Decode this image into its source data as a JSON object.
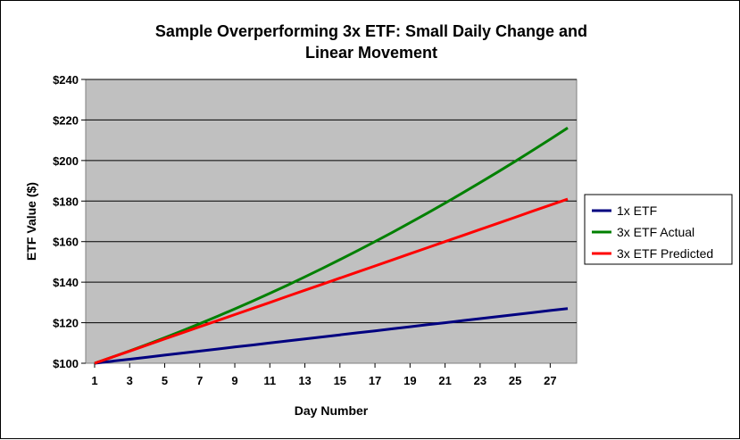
{
  "chart_data": {
    "type": "line",
    "title": "Sample Overperforming 3x ETF: Small Daily Change and Linear Movement",
    "xlabel": "Day Number",
    "ylabel": "ETF Value ($)",
    "xlim": [
      1,
      28
    ],
    "ylim": [
      100,
      240
    ],
    "x_ticks": [
      "1",
      "3",
      "5",
      "7",
      "9",
      "11",
      "13",
      "15",
      "17",
      "19",
      "21",
      "23",
      "25",
      "27"
    ],
    "y_ticks": [
      "$100",
      "$120",
      "$140",
      "$160",
      "$180",
      "$200",
      "$220",
      "$240"
    ],
    "grid": true,
    "plot_background": "#C0C0C0",
    "legend_position": "right",
    "x": [
      1,
      2,
      3,
      4,
      5,
      6,
      7,
      8,
      9,
      10,
      11,
      12,
      13,
      14,
      15,
      16,
      17,
      18,
      19,
      20,
      21,
      22,
      23,
      24,
      25,
      26,
      27,
      28
    ],
    "series": [
      {
        "name": "1x ETF",
        "color": "#000080",
        "values": [
          100,
          101,
          102,
          103,
          104,
          105,
          106,
          107,
          108,
          109,
          110,
          111,
          112,
          113,
          114,
          115,
          116,
          117,
          118,
          119,
          120,
          121,
          122,
          123,
          124,
          125,
          126,
          127
        ]
      },
      {
        "name": "3x ETF Actual",
        "color": "#008000",
        "values": [
          100,
          103,
          106.1,
          109.3,
          112.6,
          116,
          119.5,
          123.1,
          126.8,
          130.6,
          134.5,
          138.5,
          142.6,
          146.8,
          151.1,
          155.5,
          160,
          164.6,
          169.3,
          174.1,
          179,
          184,
          189.1,
          194.3,
          199.6,
          205,
          210.5,
          216.1
        ]
      },
      {
        "name": "3x ETF Predicted",
        "color": "#FF0000",
        "values": [
          100,
          103,
          106,
          109,
          112,
          115,
          118,
          121,
          124,
          127,
          130,
          133,
          136,
          139,
          142,
          145,
          148,
          151,
          154,
          157,
          160,
          163,
          166,
          169,
          172,
          175,
          178,
          181
        ]
      }
    ]
  }
}
